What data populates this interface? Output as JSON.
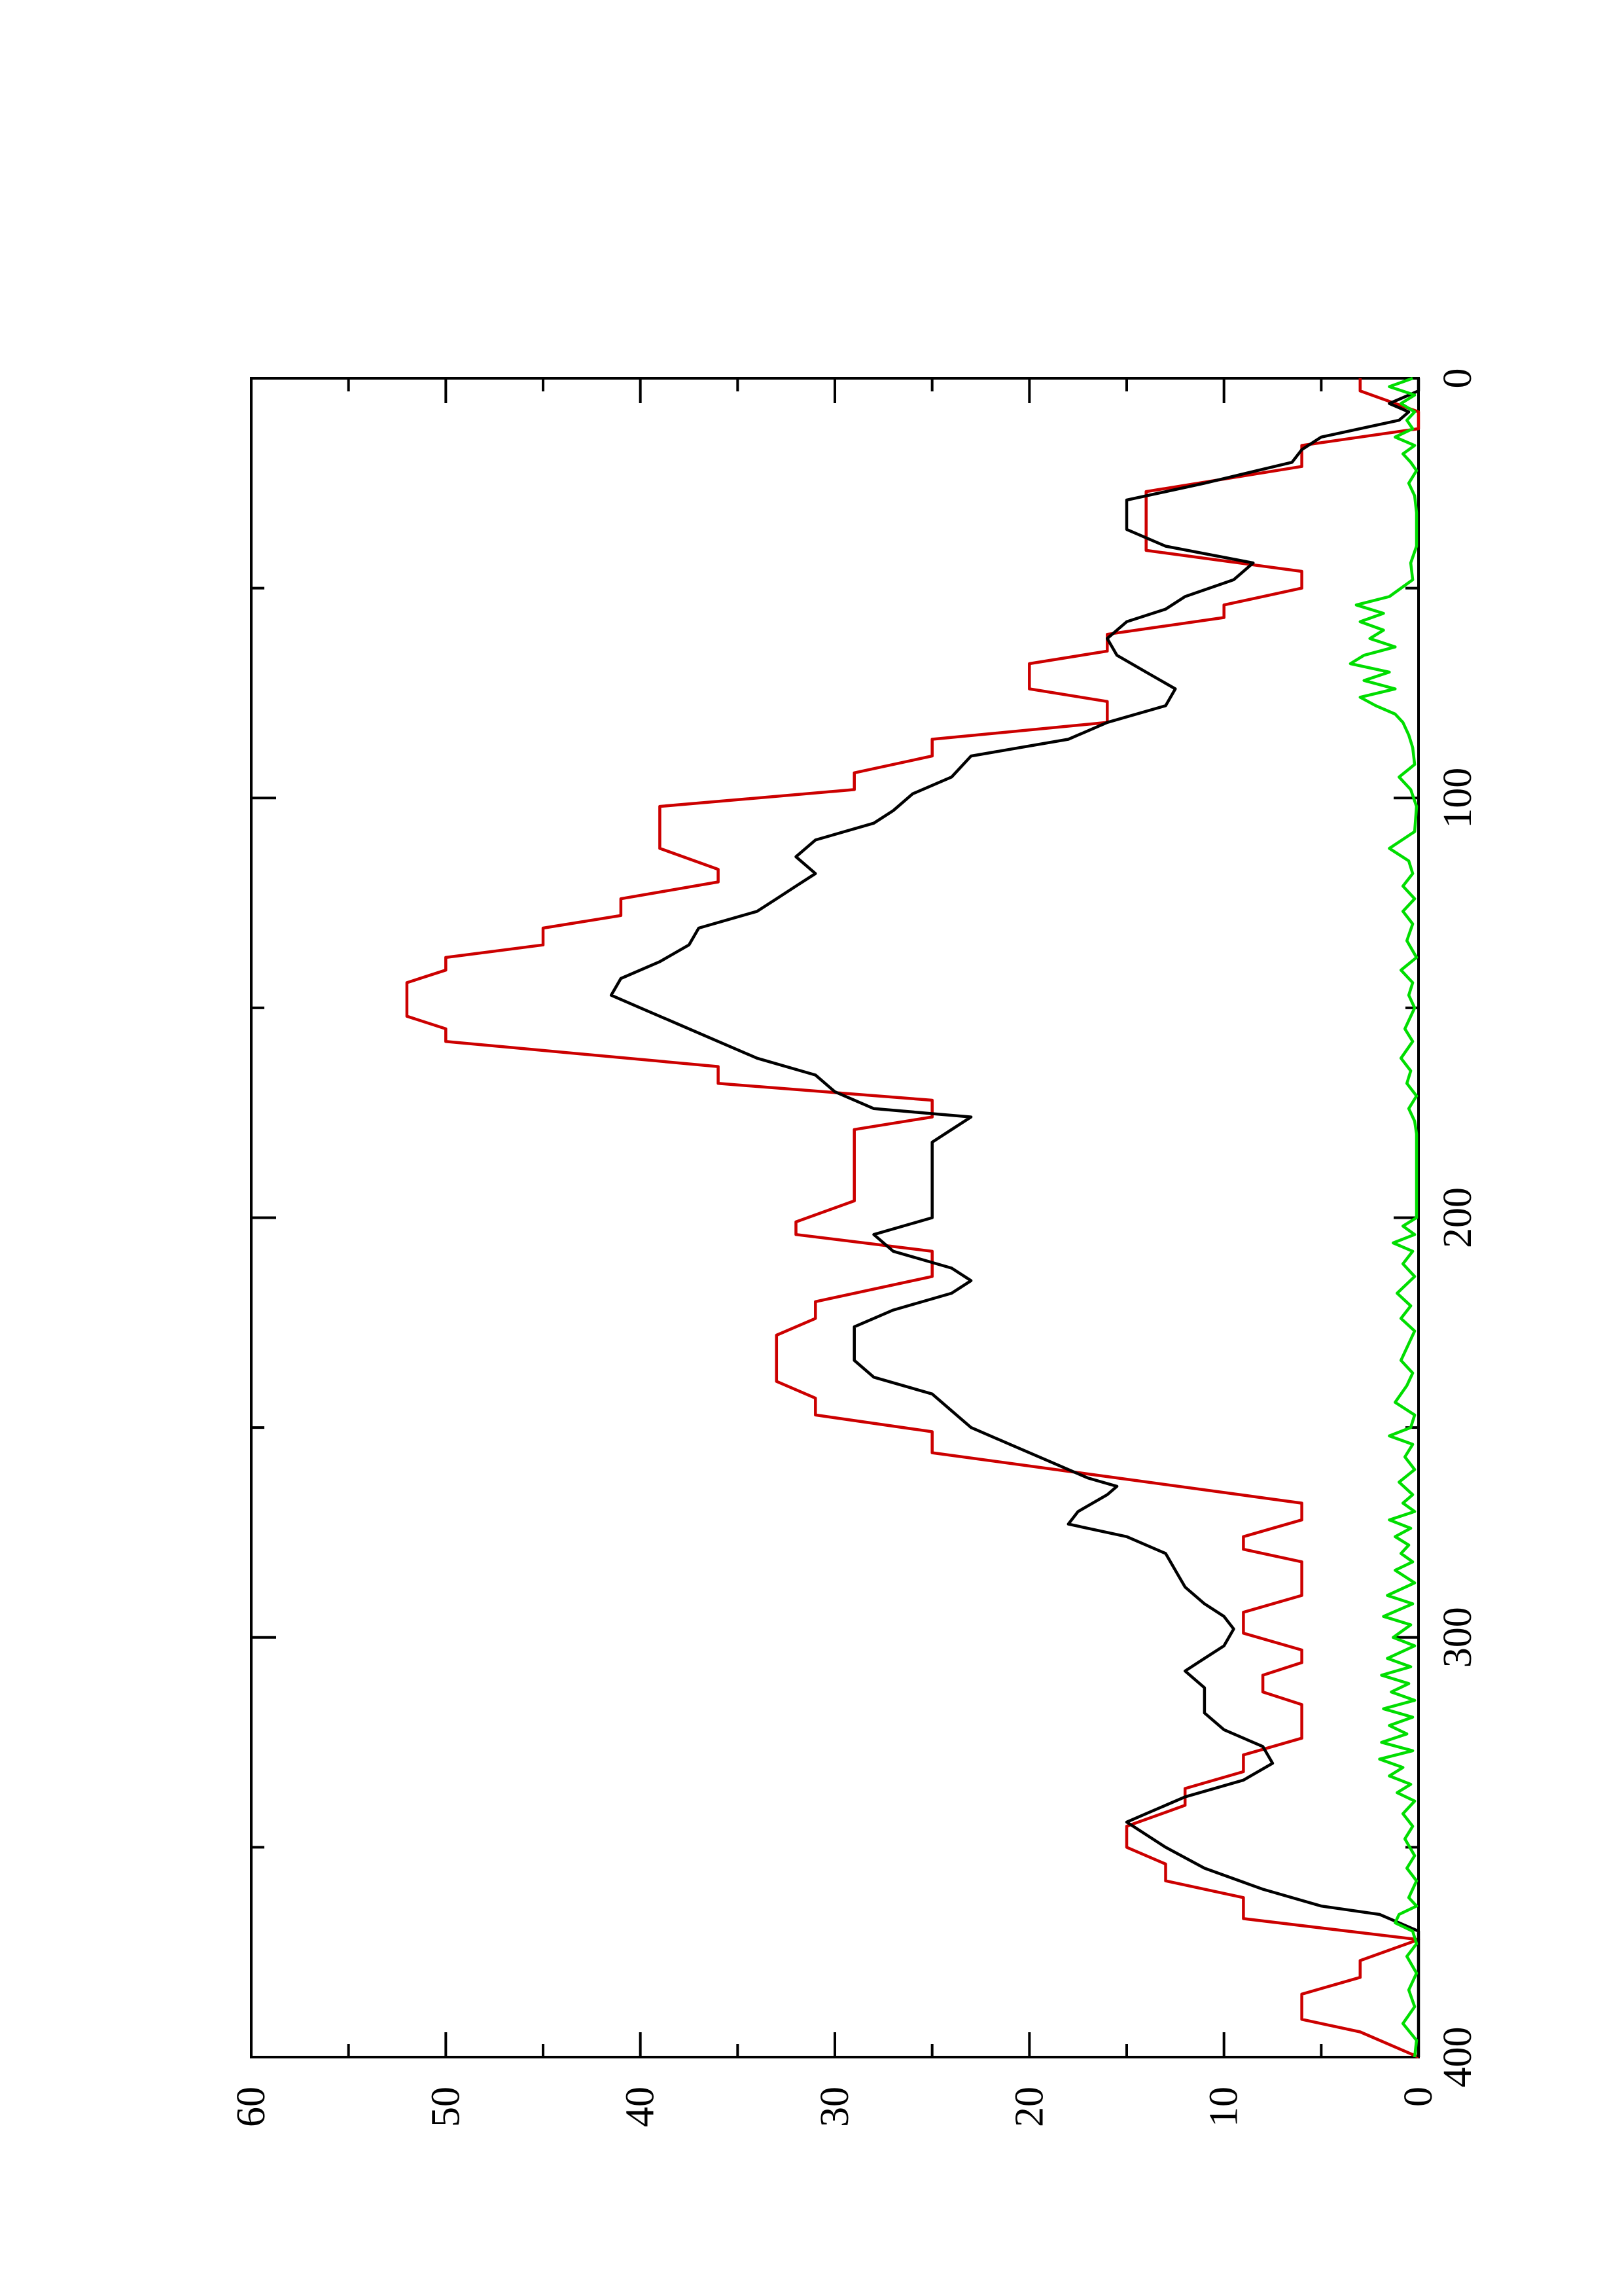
{
  "chart_data": {
    "type": "line",
    "orientation": "rotated-90-ccw",
    "title": "",
    "xlabel": "",
    "ylabel": "",
    "xlim": [
      0,
      400
    ],
    "ylim": [
      0,
      60
    ],
    "x_ticks": [
      {
        "value": 0,
        "label": "0"
      },
      {
        "value": 100,
        "label": "100"
      },
      {
        "value": 200,
        "label": "200"
      },
      {
        "value": 300,
        "label": "300"
      },
      {
        "value": 400,
        "label": "400"
      }
    ],
    "y_ticks": [
      {
        "value": 0,
        "label": "0"
      },
      {
        "value": 10,
        "label": "10"
      },
      {
        "value": 20,
        "label": "20"
      },
      {
        "value": 30,
        "label": "30"
      },
      {
        "value": 40,
        "label": "40"
      },
      {
        "value": 50,
        "label": "50"
      },
      {
        "value": 60,
        "label": "60"
      }
    ],
    "x_minor_ticks": [
      50,
      150,
      250,
      350
    ],
    "y_minor_ticks": [
      5,
      15,
      25,
      35,
      45,
      55
    ],
    "grid": false,
    "legend": "none",
    "series": [
      {
        "color": "#cc0000",
        "points": [
          [
            0,
            3
          ],
          [
            3,
            3
          ],
          [
            8,
            0
          ],
          [
            12,
            0
          ],
          [
            16,
            6
          ],
          [
            21,
            6
          ],
          [
            27,
            14
          ],
          [
            41,
            14
          ],
          [
            46,
            6
          ],
          [
            50,
            6
          ],
          [
            54,
            10
          ],
          [
            57,
            10
          ],
          [
            61,
            16
          ],
          [
            65,
            16
          ],
          [
            68,
            20
          ],
          [
            74,
            20
          ],
          [
            77,
            16
          ],
          [
            82,
            16
          ],
          [
            86,
            25
          ],
          [
            90,
            25
          ],
          [
            94,
            29
          ],
          [
            98,
            29
          ],
          [
            102,
            39
          ],
          [
            112,
            39
          ],
          [
            117,
            36
          ],
          [
            120,
            36
          ],
          [
            124,
            41
          ],
          [
            128,
            41
          ],
          [
            131,
            45
          ],
          [
            135,
            45
          ],
          [
            138,
            50
          ],
          [
            141,
            50
          ],
          [
            144,
            52
          ],
          [
            152,
            52
          ],
          [
            155,
            50
          ],
          [
            158,
            50
          ],
          [
            164,
            36
          ],
          [
            168,
            36
          ],
          [
            172,
            25
          ],
          [
            176,
            25
          ],
          [
            179,
            29
          ],
          [
            196,
            29
          ],
          [
            201,
            32
          ],
          [
            204,
            32
          ],
          [
            208,
            25
          ],
          [
            214,
            25
          ],
          [
            220,
            31
          ],
          [
            224,
            31
          ],
          [
            228,
            33
          ],
          [
            239,
            33
          ],
          [
            243,
            31
          ],
          [
            247,
            31
          ],
          [
            251,
            25
          ],
          [
            256,
            25
          ],
          [
            268,
            6
          ],
          [
            272,
            6
          ],
          [
            276,
            9
          ],
          [
            279,
            9
          ],
          [
            282,
            6
          ],
          [
            290,
            6
          ],
          [
            294,
            9
          ],
          [
            299,
            9
          ],
          [
            303,
            6
          ],
          [
            306,
            6
          ],
          [
            309,
            8
          ],
          [
            313,
            8
          ],
          [
            316,
            6
          ],
          [
            324,
            6
          ],
          [
            328,
            9
          ],
          [
            332,
            9
          ],
          [
            336,
            12
          ],
          [
            340,
            12
          ],
          [
            345,
            15
          ],
          [
            350,
            15
          ],
          [
            354,
            13
          ],
          [
            358,
            13
          ],
          [
            362,
            9
          ],
          [
            367,
            9
          ],
          [
            372,
            0
          ],
          [
            377,
            3
          ],
          [
            381,
            3
          ],
          [
            385,
            6
          ],
          [
            391,
            6
          ],
          [
            394,
            3
          ],
          [
            400,
            0
          ]
        ]
      },
      {
        "color": "#000000",
        "points": [
          [
            0,
            0
          ],
          [
            3,
            0
          ],
          [
            6,
            1.5
          ],
          [
            8,
            0.5
          ],
          [
            10,
            1
          ],
          [
            14,
            5
          ],
          [
            17,
            6
          ],
          [
            20,
            6.5
          ],
          [
            25,
            11
          ],
          [
            29,
            15
          ],
          [
            36,
            15
          ],
          [
            40,
            13
          ],
          [
            44,
            8.5
          ],
          [
            48,
            9.5
          ],
          [
            52,
            12
          ],
          [
            55,
            13
          ],
          [
            58,
            15
          ],
          [
            62,
            16
          ],
          [
            66,
            15.5
          ],
          [
            70,
            14
          ],
          [
            74,
            12.5
          ],
          [
            78,
            13
          ],
          [
            82,
            16
          ],
          [
            86,
            18
          ],
          [
            90,
            23
          ],
          [
            95,
            24
          ],
          [
            99,
            26
          ],
          [
            103,
            27
          ],
          [
            106,
            28
          ],
          [
            110,
            31
          ],
          [
            114,
            32
          ],
          [
            118,
            31
          ],
          [
            121,
            32
          ],
          [
            124,
            33
          ],
          [
            127,
            34
          ],
          [
            131,
            37
          ],
          [
            135,
            37.5
          ],
          [
            139,
            39
          ],
          [
            143,
            41
          ],
          [
            147,
            41.5
          ],
          [
            150,
            40
          ],
          [
            154,
            38
          ],
          [
            158,
            36
          ],
          [
            162,
            34
          ],
          [
            166,
            31
          ],
          [
            170,
            30
          ],
          [
            174,
            28
          ],
          [
            176,
            23
          ],
          [
            179,
            24
          ],
          [
            182,
            25
          ],
          [
            200,
            25
          ],
          [
            204,
            28
          ],
          [
            208,
            27
          ],
          [
            212,
            24
          ],
          [
            215,
            23
          ],
          [
            218,
            24
          ],
          [
            222,
            27
          ],
          [
            226,
            29
          ],
          [
            230,
            29
          ],
          [
            234,
            29
          ],
          [
            238,
            28
          ],
          [
            242,
            25
          ],
          [
            246,
            24
          ],
          [
            250,
            23
          ],
          [
            254,
            21
          ],
          [
            258,
            19
          ],
          [
            262,
            17
          ],
          [
            264,
            15.5
          ],
          [
            266,
            16
          ],
          [
            270,
            17.5
          ],
          [
            273,
            18
          ],
          [
            276,
            15
          ],
          [
            280,
            13
          ],
          [
            284,
            12.5
          ],
          [
            288,
            12
          ],
          [
            292,
            11
          ],
          [
            295,
            10
          ],
          [
            298,
            9.5
          ],
          [
            302,
            10
          ],
          [
            305,
            11
          ],
          [
            308,
            12
          ],
          [
            312,
            11
          ],
          [
            318,
            11
          ],
          [
            322,
            10
          ],
          [
            326,
            8
          ],
          [
            330,
            7.5
          ],
          [
            334,
            9
          ],
          [
            338,
            12
          ],
          [
            342,
            14
          ],
          [
            344,
            15
          ],
          [
            347,
            14
          ],
          [
            350,
            13
          ],
          [
            355,
            11
          ],
          [
            360,
            8
          ],
          [
            364,
            5
          ],
          [
            366,
            2
          ],
          [
            368,
            1
          ],
          [
            370,
            0
          ],
          [
            400,
            0
          ]
        ]
      },
      {
        "color": "#00dd00",
        "points": [
          [
            0,
            0.3
          ],
          [
            2,
            1.5
          ],
          [
            4,
            0.2
          ],
          [
            6,
            0.9
          ],
          [
            8,
            0.2
          ],
          [
            10,
            0.6
          ],
          [
            12,
            0.3
          ],
          [
            14,
            1.2
          ],
          [
            16,
            0.2
          ],
          [
            18,
            0.8
          ],
          [
            20,
            0.4
          ],
          [
            22,
            0.1
          ],
          [
            25,
            0.5
          ],
          [
            28,
            0.2
          ],
          [
            32,
            0.1
          ],
          [
            40,
            0.1
          ],
          [
            44,
            0.4
          ],
          [
            48,
            0.3
          ],
          [
            52,
            1.5
          ],
          [
            54,
            3.2
          ],
          [
            56,
            1.8
          ],
          [
            58,
            3
          ],
          [
            60,
            1.8
          ],
          [
            62,
            2.5
          ],
          [
            64,
            1.2
          ],
          [
            66,
            2.8
          ],
          [
            68,
            3.5
          ],
          [
            70,
            1.5
          ],
          [
            72,
            2.8
          ],
          [
            74,
            1.2
          ],
          [
            76,
            3
          ],
          [
            78,
            2.2
          ],
          [
            80,
            1.2
          ],
          [
            82,
            0.8
          ],
          [
            85,
            0.5
          ],
          [
            88,
            0.3
          ],
          [
            92,
            0.2
          ],
          [
            95,
            1
          ],
          [
            98,
            0.4
          ],
          [
            102,
            0.1
          ],
          [
            108,
            0.2
          ],
          [
            112,
            1.5
          ],
          [
            115,
            0.5
          ],
          [
            118,
            0.3
          ],
          [
            121,
            0.8
          ],
          [
            124,
            0.2
          ],
          [
            127,
            0.8
          ],
          [
            130,
            0.3
          ],
          [
            134,
            0.6
          ],
          [
            138,
            0.1
          ],
          [
            141,
            0.9
          ],
          [
            144,
            0.3
          ],
          [
            147,
            0.5
          ],
          [
            150,
            0.2
          ],
          [
            155,
            0.7
          ],
          [
            158,
            0.3
          ],
          [
            162,
            0.9
          ],
          [
            165,
            0.4
          ],
          [
            168,
            0.6
          ],
          [
            171,
            0.1
          ],
          [
            174,
            0.5
          ],
          [
            177,
            0.2
          ],
          [
            180,
            0.1
          ],
          [
            200,
            0.1
          ],
          [
            202,
            0.8
          ],
          [
            204,
            0.2
          ],
          [
            206,
            1.3
          ],
          [
            208,
            0.3
          ],
          [
            211,
            0.8
          ],
          [
            214,
            0.2
          ],
          [
            218,
            1.1
          ],
          [
            221,
            0.4
          ],
          [
            224,
            0.9
          ],
          [
            227,
            0.2
          ],
          [
            230,
            0.5
          ],
          [
            234,
            0.9
          ],
          [
            237,
            0.3
          ],
          [
            240,
            0.6
          ],
          [
            244,
            1.2
          ],
          [
            247,
            0.2
          ],
          [
            250,
            0.4
          ],
          [
            252,
            1.5
          ],
          [
            254,
            0.3
          ],
          [
            257,
            0.7
          ],
          [
            260,
            0.2
          ],
          [
            263,
            1
          ],
          [
            266,
            0.3
          ],
          [
            268,
            0.8
          ],
          [
            270,
            0.2
          ],
          [
            272,
            1.5
          ],
          [
            274,
            0.4
          ],
          [
            276,
            1.2
          ],
          [
            278,
            0.5
          ],
          [
            280,
            0.9
          ],
          [
            282,
            0.3
          ],
          [
            284,
            1.2
          ],
          [
            287,
            0.2
          ],
          [
            290,
            1.6
          ],
          [
            292,
            0.3
          ],
          [
            295,
            1.8
          ],
          [
            297,
            0.4
          ],
          [
            300,
            1.3
          ],
          [
            302,
            0.2
          ],
          [
            305,
            1.6
          ],
          [
            307,
            0.4
          ],
          [
            309,
            1.9
          ],
          [
            311,
            0.5
          ],
          [
            313,
            1.4
          ],
          [
            315,
            0.2
          ],
          [
            317,
            1.8
          ],
          [
            319,
            0.3
          ],
          [
            321,
            1.5
          ],
          [
            323,
            0.6
          ],
          [
            325,
            1.9
          ],
          [
            327,
            0.3
          ],
          [
            329,
            2
          ],
          [
            331,
            0.8
          ],
          [
            333,
            1.5
          ],
          [
            335,
            0.4
          ],
          [
            337,
            1.1
          ],
          [
            339,
            0.2
          ],
          [
            342,
            0.8
          ],
          [
            345,
            0.3
          ],
          [
            348,
            0.7
          ],
          [
            352,
            0.2
          ],
          [
            355,
            0.6
          ],
          [
            358,
            0.1
          ],
          [
            362,
            0.5
          ],
          [
            364,
            0.1
          ],
          [
            366,
            1
          ],
          [
            368,
            1.2
          ],
          [
            370,
            0.3
          ],
          [
            373,
            0.1
          ],
          [
            376,
            0.6
          ],
          [
            380,
            0.1
          ],
          [
            384,
            0.5
          ],
          [
            388,
            0.2
          ],
          [
            392,
            0.8
          ],
          [
            396,
            0.1
          ],
          [
            400,
            0.2
          ]
        ]
      }
    ]
  }
}
